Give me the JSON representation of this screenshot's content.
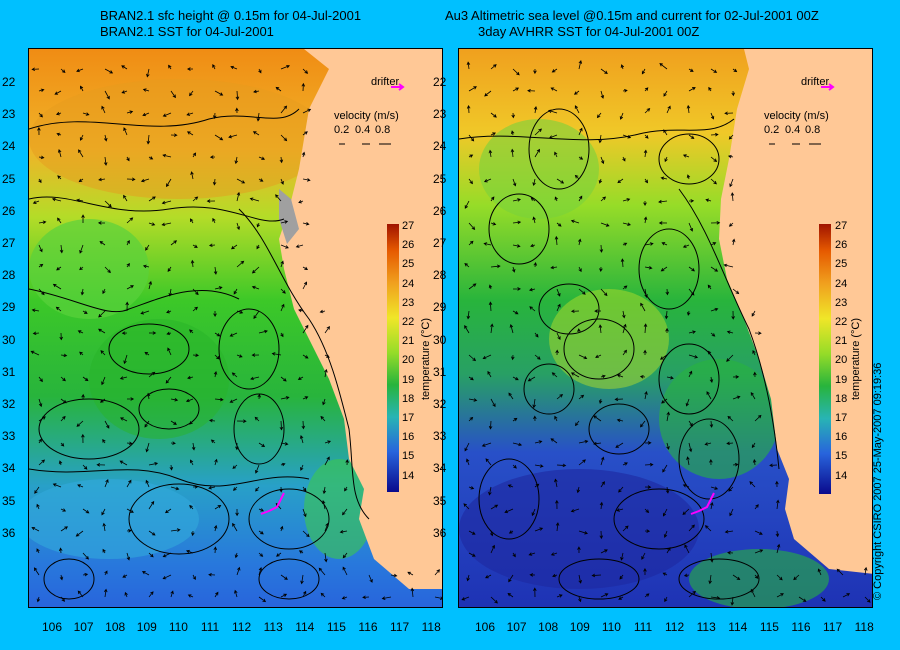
{
  "left_panel": {
    "title_line1": "BRAN2.1 sfc height @ 0.15m for 04-Jul-2001",
    "title_line2": "BRAN2.1 SST for 04-Jul-2001"
  },
  "right_panel": {
    "title_line1": "Au3 Altimetric sea level  @0.15m and current for 02-Jul-2001 00Z",
    "title_line2": "3day AVHRR SST for 04-Jul-2001 00Z"
  },
  "legend": {
    "drifter_label": "drifter",
    "velocity_label": "velocity (m/s)",
    "velocity_values": [
      "0.2",
      "0.4",
      "0.8"
    ],
    "drifter_color": "#FF00FF"
  },
  "colorbar": {
    "label": "temperature (°C)",
    "ticks": [
      "27",
      "26",
      "25",
      "24",
      "23",
      "22",
      "21",
      "20",
      "19",
      "18",
      "17",
      "16",
      "15",
      "14"
    ]
  },
  "latitudes": [
    "22",
    "23",
    "24",
    "25",
    "26",
    "27",
    "28",
    "29",
    "30",
    "31",
    "32",
    "33",
    "34",
    "35",
    "36"
  ],
  "longitudes": [
    "106",
    "107",
    "108",
    "109",
    "110",
    "111",
    "112",
    "113",
    "114",
    "115",
    "116",
    "117",
    "118"
  ],
  "copyright": "© Copyright CSIRO 2007   25-May-2007 09:19:36",
  "colors": {
    "background": "#00C0FF",
    "land": "#FFC896"
  }
}
